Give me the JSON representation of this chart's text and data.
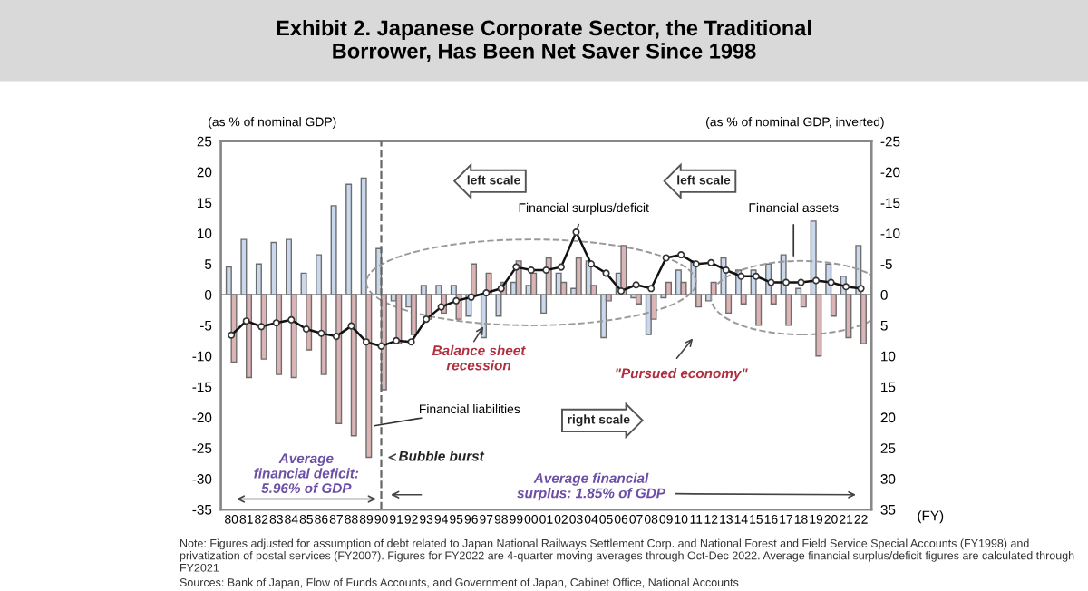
{
  "chart_data": {
    "type": "bar",
    "title": "Exhibit 2. Japanese Corporate Sector, the Traditional\nBorrower, Has Been Net Saver Since 1998",
    "categories": [
      "80",
      "81",
      "82",
      "83",
      "84",
      "85",
      "86",
      "87",
      "88",
      "89",
      "90",
      "91",
      "92",
      "93",
      "94",
      "95",
      "96",
      "97",
      "98",
      "99",
      "00",
      "01",
      "02",
      "03",
      "04",
      "05",
      "06",
      "07",
      "08",
      "09",
      "10",
      "11",
      "12",
      "13",
      "14",
      "15",
      "16",
      "17",
      "18",
      "19",
      "20",
      "21",
      "22"
    ],
    "series": [
      {
        "name": "Financial assets",
        "type": "bar",
        "axis": "y2",
        "color": "#c9d8ec",
        "values": [
          -4.5,
          -9,
          -5,
          -8.5,
          -9,
          -3.5,
          -6.5,
          -14.5,
          -18,
          -19,
          -7.5,
          1,
          2,
          -1.5,
          -1.5,
          -1.5,
          3.5,
          7,
          3.5,
          -2,
          -1.5,
          3,
          -3.5,
          -1,
          -5.5,
          7,
          -3.5,
          0.5,
          6.5,
          0.5,
          -4,
          -5.5,
          1,
          -6,
          -4,
          -4,
          -5,
          -6.5,
          -1,
          -12,
          -5,
          -3,
          -8
        ]
      },
      {
        "name": "Financial liabilities",
        "type": "bar",
        "color": "#dcb4b6",
        "values": [
          -11,
          -13.5,
          -10.5,
          -13,
          -13.5,
          -9,
          -13,
          -21,
          -23,
          -26.5,
          -15.5,
          -8,
          -6.5,
          -4,
          -3,
          -4,
          5,
          3.5,
          2,
          5.5,
          3.5,
          6,
          2,
          6,
          1.5,
          -1,
          8,
          -1.5,
          -4,
          2,
          2,
          -2,
          2,
          -3,
          -1.5,
          -5,
          -1.5,
          -5,
          -2,
          -10,
          -3.5,
          -7,
          -8
        ]
      },
      {
        "name": "Financial surplus/deficit",
        "type": "line",
        "color": "#111111",
        "marker": "circle",
        "values": [
          -6.6,
          -4.3,
          -5.2,
          -4.6,
          -4.1,
          -5.6,
          -6.3,
          -6.8,
          -5.1,
          -7.7,
          -8.4,
          -7.5,
          -7.7,
          -4,
          -2,
          -1,
          -0.4,
          0.3,
          1,
          4.5,
          4,
          4,
          4.5,
          10.2,
          5,
          3.5,
          0.6,
          1.6,
          1,
          6,
          6.5,
          5,
          5.2,
          4,
          3,
          3,
          2,
          2,
          2,
          2.3,
          2,
          1.3,
          1
        ]
      }
    ],
    "ylabel": "(as % of nominal GDP)",
    "y2label": "(as % of nominal GDP, inverted)",
    "xlabel": "(FY)",
    "ylim": [
      -35,
      25
    ],
    "yticks": [
      -35,
      -30,
      -25,
      -20,
      -15,
      -10,
      -5,
      0,
      5,
      10,
      15,
      20,
      25
    ],
    "y2lim": [
      35,
      -25
    ],
    "y2ticks": [
      -25,
      -20,
      -15,
      -10,
      -5,
      0,
      5,
      10,
      15,
      20,
      25,
      30,
      35
    ],
    "ref_lines": [
      {
        "axis": "x",
        "value": "90",
        "line_style": "dashed",
        "color": "#666666"
      }
    ],
    "annotations": [
      "left scale",
      "left scale",
      "right scale",
      "Balance sheet\nrecession",
      "\"Pursued economy\"",
      "Bubble burst",
      "Average\nfinancial deficit:\n5.96% of GDP",
      "Average financial\nsurplus: 1.85% of GDP",
      "Note: Figures adjusted for assumption of debt related to Japan National Railways Settlement Corp. and National Forest and Field Service Special Accounts (FY1998) and privatization of postal services (FY2007). Figures for FY2022 are 4-quarter moving averages through Oct-Dec 2022. Average financial surplus/deficit figures are calculated through FY2021",
      "Sources: Bank of Japan, Flow of Funds Accounts, and Government of Japan, Cabinet Office, National Accounts"
    ],
    "grid": false,
    "legend": false
  }
}
